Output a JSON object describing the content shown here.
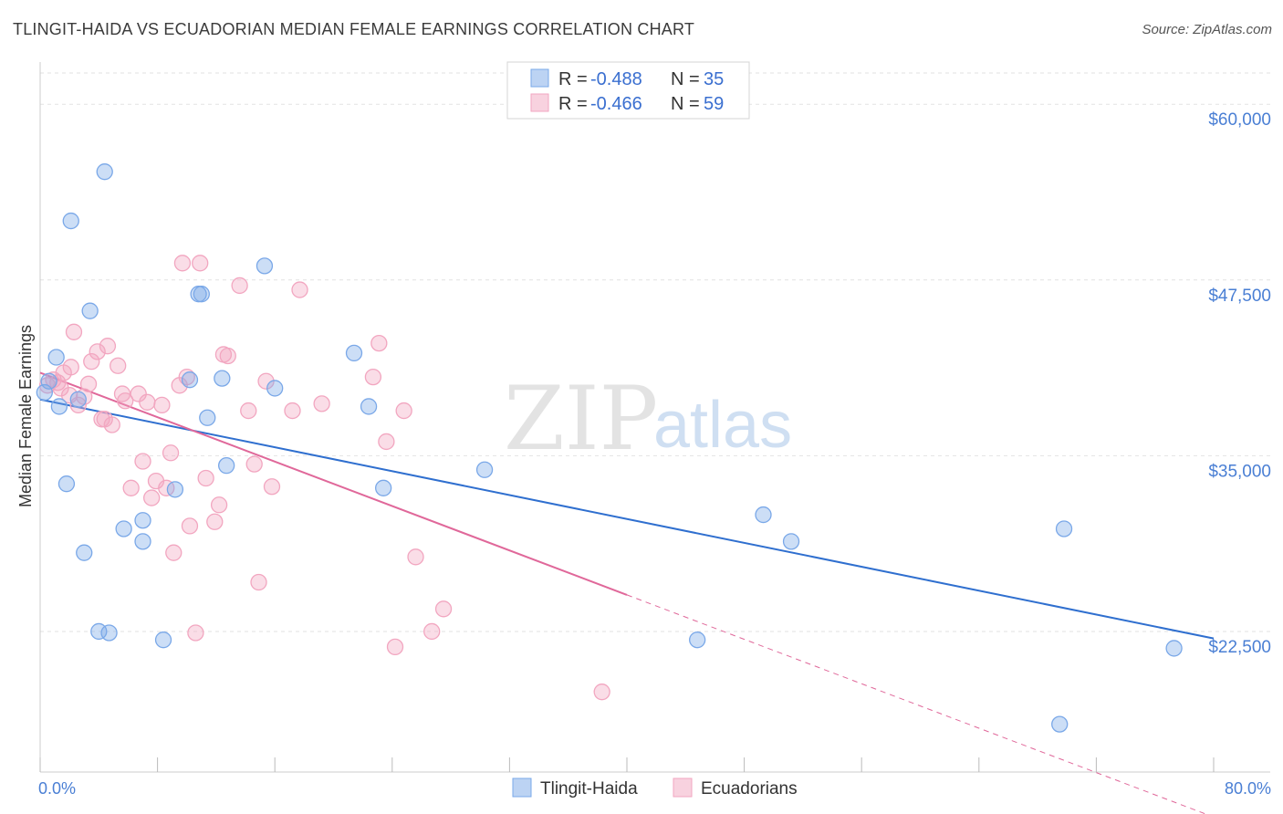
{
  "title": "TLINGIT-HAIDA VS ECUADORIAN MEDIAN FEMALE EARNINGS CORRELATION CHART",
  "source": "Source: ZipAtlas.com",
  "watermark": {
    "part1": "ZIP",
    "part2": "atlas"
  },
  "chart_data": {
    "type": "scatter",
    "title": "TLINGIT-HAIDA VS ECUADORIAN MEDIAN FEMALE EARNINGS CORRELATION CHART",
    "ylabel": "Median Female Earnings",
    "xlabel": "",
    "xlim": [
      0,
      80
    ],
    "ylim": [
      12500,
      63000
    ],
    "x_tick_labels": [
      "0.0%",
      "80.0%"
    ],
    "y_ticks": [
      {
        "value": 22500,
        "label": "$22,500"
      },
      {
        "value": 35000,
        "label": "$35,000"
      },
      {
        "value": 47500,
        "label": "$47,500"
      },
      {
        "value": 60000,
        "label": "$60,000"
      }
    ],
    "grid": true,
    "legend_position": "top-center",
    "stats": [
      {
        "r_label": "R = ",
        "r": "-0.488",
        "n_label": "N = ",
        "n": "35"
      },
      {
        "r_label": "R = ",
        "r": "-0.466",
        "n_label": "N = ",
        "n": "59"
      }
    ],
    "series": [
      {
        "name": "Tlingit-Haida",
        "color": "#7aa8e8",
        "line_color": "#2f6fcf",
        "trend": {
          "x": [
            0,
            80
          ],
          "y": [
            39000,
            22000
          ]
        },
        "points": [
          [
            0.6,
            40300
          ],
          [
            1.1,
            42000
          ],
          [
            1.3,
            38500
          ],
          [
            1.8,
            33000
          ],
          [
            2.1,
            51700
          ],
          [
            2.6,
            39000
          ],
          [
            3.0,
            28100
          ],
          [
            3.4,
            45300
          ],
          [
            4.0,
            22500
          ],
          [
            4.4,
            55200
          ],
          [
            4.7,
            22400
          ],
          [
            5.7,
            29800
          ],
          [
            7.0,
            30400
          ],
          [
            7.0,
            28900
          ],
          [
            8.4,
            21900
          ],
          [
            9.2,
            32600
          ],
          [
            10.2,
            40400
          ],
          [
            10.8,
            46500
          ],
          [
            11.0,
            46500
          ],
          [
            11.4,
            37700
          ],
          [
            12.4,
            40500
          ],
          [
            12.7,
            34300
          ],
          [
            15.3,
            48500
          ],
          [
            16.0,
            39800
          ],
          [
            21.4,
            42300
          ],
          [
            22.4,
            38500
          ],
          [
            23.4,
            32700
          ],
          [
            30.3,
            34000
          ],
          [
            44.8,
            21900
          ],
          [
            49.3,
            30800
          ],
          [
            51.2,
            28900
          ],
          [
            69.5,
            15900
          ],
          [
            69.8,
            29800
          ],
          [
            77.3,
            21300
          ],
          [
            0.3,
            39500
          ]
        ]
      },
      {
        "name": "Ecuadorians",
        "color": "#f2a6c0",
        "line_color": "#e0689a",
        "trend": {
          "x": [
            0,
            40
          ],
          "y": [
            40900,
            25100
          ]
        },
        "trend_dashed": {
          "x": [
            40,
            80
          ],
          "y": [
            25100,
            9300
          ]
        },
        "points": [
          [
            0.5,
            40000
          ],
          [
            0.9,
            40400
          ],
          [
            1.2,
            40200
          ],
          [
            1.4,
            39800
          ],
          [
            1.6,
            40900
          ],
          [
            2.0,
            39300
          ],
          [
            2.1,
            41300
          ],
          [
            2.3,
            43800
          ],
          [
            2.6,
            38600
          ],
          [
            3.0,
            39200
          ],
          [
            3.3,
            40100
          ],
          [
            3.5,
            41700
          ],
          [
            3.9,
            42400
          ],
          [
            4.2,
            37600
          ],
          [
            4.4,
            37600
          ],
          [
            4.6,
            42800
          ],
          [
            4.9,
            37200
          ],
          [
            5.3,
            41400
          ],
          [
            5.6,
            39400
          ],
          [
            5.8,
            38900
          ],
          [
            6.2,
            32700
          ],
          [
            6.7,
            39400
          ],
          [
            7.0,
            34600
          ],
          [
            7.3,
            38800
          ],
          [
            7.6,
            32000
          ],
          [
            7.9,
            33200
          ],
          [
            8.3,
            38600
          ],
          [
            8.6,
            32700
          ],
          [
            8.9,
            35200
          ],
          [
            9.1,
            28100
          ],
          [
            9.5,
            40000
          ],
          [
            9.7,
            48700
          ],
          [
            10.0,
            40600
          ],
          [
            10.2,
            30000
          ],
          [
            10.6,
            22400
          ],
          [
            10.9,
            48700
          ],
          [
            11.3,
            33400
          ],
          [
            11.9,
            30300
          ],
          [
            12.2,
            31500
          ],
          [
            12.5,
            42200
          ],
          [
            12.8,
            42100
          ],
          [
            13.6,
            47100
          ],
          [
            14.2,
            38200
          ],
          [
            14.6,
            34400
          ],
          [
            14.9,
            26000
          ],
          [
            15.4,
            40300
          ],
          [
            15.8,
            32800
          ],
          [
            17.2,
            38200
          ],
          [
            17.7,
            46800
          ],
          [
            19.2,
            38700
          ],
          [
            22.7,
            40600
          ],
          [
            23.1,
            43000
          ],
          [
            23.6,
            36000
          ],
          [
            24.2,
            21400
          ],
          [
            24.8,
            38200
          ],
          [
            25.6,
            27800
          ],
          [
            26.7,
            22500
          ],
          [
            27.5,
            24100
          ],
          [
            38.3,
            18200
          ]
        ]
      }
    ]
  }
}
